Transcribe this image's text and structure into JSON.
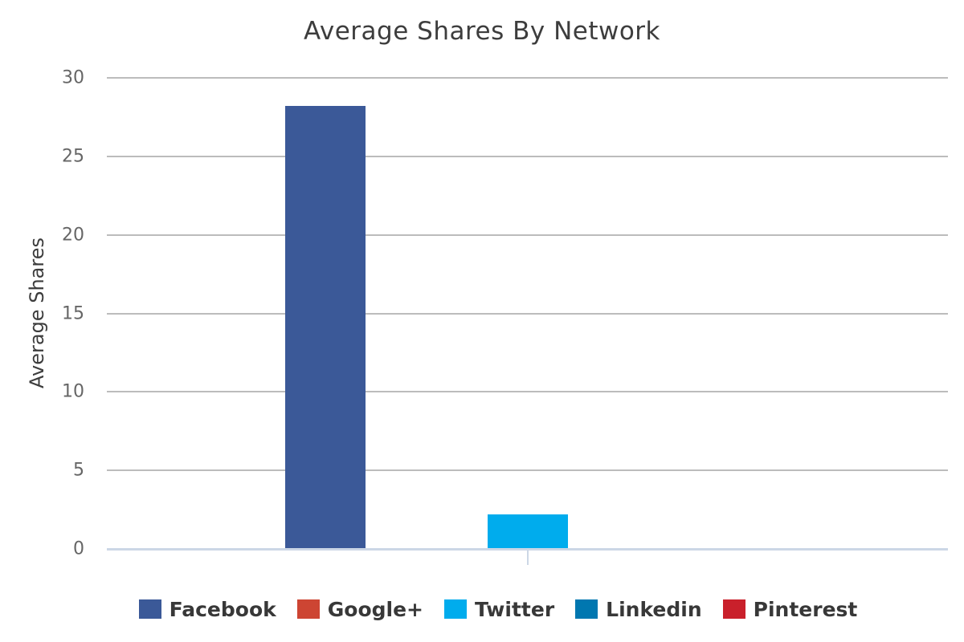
{
  "chart_data": {
    "type": "bar",
    "title": "Average Shares By Network",
    "xlabel": "",
    "ylabel": "Average Shares",
    "categories": [
      "Facebook",
      "Google+",
      "Twitter",
      "Linkedin",
      "Pinterest"
    ],
    "series": [
      {
        "name": "Facebook",
        "color": "#3b5998",
        "value": 28.2
      },
      {
        "name": "Google+",
        "color": "#cd4533",
        "value": 0
      },
      {
        "name": "Twitter",
        "color": "#00aced",
        "value": 2.2
      },
      {
        "name": "Linkedin",
        "color": "#0077b0",
        "value": 0
      },
      {
        "name": "Pinterest",
        "color": "#c9202b",
        "value": 0
      }
    ],
    "ylim": [
      0,
      30
    ],
    "yticks": [
      0,
      5,
      10,
      15,
      20,
      25,
      30
    ],
    "grid": true,
    "legend_position": "bottom"
  },
  "colors": {
    "background": "#ffffff",
    "grid_line": "#bcbcbc",
    "zero_axis_line": "#ccd7e6",
    "tick_label_text": "#666666",
    "title_text": "#3d3d3d",
    "legend_text": "#383838"
  }
}
